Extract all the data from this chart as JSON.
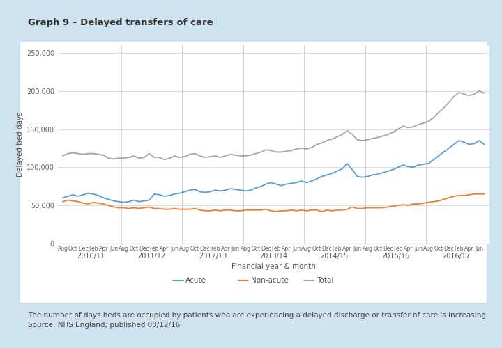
{
  "title": "Graph 9 – Delayed transfers of care",
  "ylabel": "Delayed bed days",
  "xlabel": "Financial year & month",
  "caption_line1": "The number of days beds are occupied by patients who are experiencing a delayed discharge or transfer of care is increasing.",
  "caption_line2": "Source: NHS England; published 08/12/16",
  "background_outer": "#cfe2f0",
  "background_chart": "#ffffff",
  "ylim": [
    0,
    260000
  ],
  "yticks": [
    0,
    50000,
    100000,
    150000,
    200000,
    250000
  ],
  "ytick_labels": [
    "0",
    "50,000",
    "100,000",
    "150,000",
    "200,000",
    "250,000"
  ],
  "line_colors": {
    "acute": "#5b9bd5",
    "non_acute": "#ed7d31",
    "total": "#a5a5a5"
  },
  "year_labels": [
    "2010/11",
    "2011/12",
    "2012/13",
    "2013/14",
    "2014/15",
    "2015/16",
    "2016/17"
  ],
  "acute": [
    60000,
    62000,
    64000,
    62000,
    64000,
    66000,
    65000,
    63000,
    60000,
    58000,
    56000,
    55000,
    54000,
    55000,
    57000,
    55000,
    56000,
    57000,
    65000,
    64000,
    62000,
    63000,
    65000,
    66000,
    68000,
    70000,
    71000,
    68000,
    67000,
    68000,
    70000,
    69000,
    70000,
    72000,
    71000,
    70000,
    69000,
    70000,
    73000,
    75000,
    78000,
    80000,
    78000,
    76000,
    78000,
    79000,
    80000,
    82000,
    80000,
    82000,
    85000,
    88000,
    90000,
    92000,
    95000,
    98000,
    105000,
    97000,
    88000,
    87000,
    88000,
    90000,
    91000,
    93000,
    95000,
    97000,
    100000,
    103000,
    101000,
    100000,
    103000,
    104000,
    105000,
    110000,
    115000,
    120000,
    125000,
    130000,
    135000,
    133000,
    130000,
    131000,
    135000,
    130000
  ],
  "non_acute": [
    55000,
    57000,
    56000,
    55000,
    53000,
    52000,
    54000,
    53000,
    52000,
    50000,
    48000,
    47000,
    47000,
    46000,
    47000,
    46000,
    47000,
    48000,
    46000,
    46000,
    45000,
    45000,
    46000,
    45000,
    45000,
    45000,
    46000,
    44000,
    43000,
    43000,
    44000,
    43000,
    44000,
    44000,
    43000,
    43000,
    44000,
    44000,
    44000,
    44000,
    45000,
    43000,
    42000,
    43000,
    43000,
    44000,
    43000,
    44000,
    43000,
    44000,
    44000,
    42000,
    44000,
    43000,
    44000,
    44000,
    45000,
    48000,
    46000,
    46000,
    47000,
    47000,
    47000,
    47000,
    48000,
    49000,
    50000,
    51000,
    50000,
    52000,
    52000,
    53000,
    54000,
    55000,
    56000,
    58000,
    60000,
    62000,
    63000,
    63000,
    64000,
    65000,
    65000,
    65000
  ],
  "total": [
    115000,
    118000,
    119000,
    118000,
    117000,
    118000,
    118000,
    117000,
    116000,
    112000,
    111000,
    112000,
    112000,
    113000,
    115000,
    112000,
    113000,
    118000,
    113000,
    113000,
    110000,
    112000,
    115000,
    113000,
    114000,
    117000,
    118000,
    115000,
    113000,
    114000,
    115000,
    113000,
    115000,
    117000,
    116000,
    115000,
    115000,
    116000,
    118000,
    120000,
    123000,
    122000,
    120000,
    120000,
    121000,
    122000,
    124000,
    125000,
    124000,
    126000,
    130000,
    132000,
    135000,
    137000,
    140000,
    143000,
    148000,
    143000,
    136000,
    135000,
    136000,
    138000,
    139000,
    141000,
    143000,
    146000,
    150000,
    154000,
    152000,
    153000,
    156000,
    158000,
    160000,
    165000,
    172000,
    178000,
    185000,
    193000,
    198000,
    196000,
    194000,
    196000,
    200000,
    197000
  ]
}
